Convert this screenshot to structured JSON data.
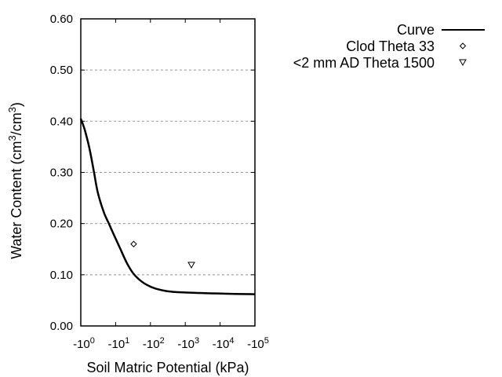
{
  "chart_data": {
    "type": "line",
    "title": "",
    "xlabel": "Soil Matric Potential (kPa)",
    "ylabel": "Water Content (cm3/cm3)",
    "ylabel_parts": {
      "pre": "Water Content (cm",
      "sup1": "3",
      "mid": "/cm",
      "sup2": "3",
      "post": ")"
    },
    "x_scale": "log (negative)",
    "xlim": [
      -1,
      -100000
    ],
    "ylim": [
      0.0,
      0.6
    ],
    "grid": "horizontal dashed at y ticks",
    "y_ticks": [
      "0.00",
      "0.10",
      "0.20",
      "0.30",
      "0.40",
      "0.50",
      "0.60"
    ],
    "x_ticks": [
      {
        "base": "-10",
        "exp": "0"
      },
      {
        "base": "-10",
        "exp": "1"
      },
      {
        "base": "-10",
        "exp": "2"
      },
      {
        "base": "-10",
        "exp": "3"
      },
      {
        "base": "-10",
        "exp": "4"
      },
      {
        "base": "-10",
        "exp": "5"
      }
    ],
    "legend_position": "upper right, outside plot",
    "series": [
      {
        "name": "Curve",
        "type": "line",
        "x_kpa": [
          -1,
          -1.3,
          -1.8,
          -2.4,
          -3.1,
          -4.6,
          -6.5,
          -9.2,
          -14,
          -21,
          -31,
          -45,
          -75,
          -140,
          -380,
          -1400,
          -13000,
          -100000
        ],
        "values": [
          0.405,
          0.383,
          0.345,
          0.3,
          0.26,
          0.222,
          0.199,
          0.176,
          0.149,
          0.123,
          0.104,
          0.092,
          0.081,
          0.073,
          0.067,
          0.065,
          0.063,
          0.062
        ]
      },
      {
        "name": "Clod Theta 33",
        "type": "scatter",
        "marker": "diamond",
        "x_kpa": [
          -33
        ],
        "values": [
          0.16
        ]
      },
      {
        "name": "<2 mm AD Theta 1500",
        "type": "scatter",
        "marker": "triangle-down",
        "x_kpa": [
          -1500
        ],
        "values": [
          0.119
        ]
      }
    ]
  },
  "legend": {
    "curve": "Curve",
    "clod": "Clod Theta 33",
    "ad": "<2 mm AD Theta 1500"
  }
}
